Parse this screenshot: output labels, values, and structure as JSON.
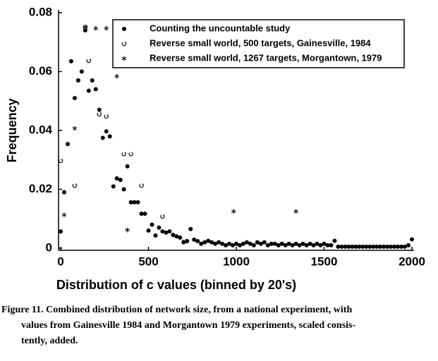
{
  "chart_data": {
    "type": "scatter",
    "xlabel": "Distribution of c values (binned by 20's)",
    "ylabel": "Frequency",
    "xlim": [
      0,
      2000
    ],
    "xticks": [
      0,
      500,
      1000,
      1500,
      2000
    ],
    "ylim": [
      0,
      0.08
    ],
    "yticks": [
      0,
      0.02,
      0.04,
      0.06,
      0.08
    ],
    "legend": "upper right",
    "series": [
      {
        "name": "Counting the uncountable study",
        "color": "#000000",
        "marker": "filled-circle",
        "x": [
          0,
          20,
          40,
          60,
          80,
          100,
          120,
          140,
          160,
          180,
          200,
          220,
          240,
          260,
          280,
          300,
          320,
          340,
          360,
          380,
          400,
          420,
          440,
          460,
          480,
          500,
          520,
          540,
          560,
          580,
          600,
          620,
          640,
          660,
          680,
          700,
          720,
          740,
          760,
          780,
          800,
          820,
          840,
          860,
          880,
          900,
          920,
          940,
          960,
          980,
          1000,
          1020,
          1040,
          1060,
          1080,
          1100,
          1120,
          1140,
          1160,
          1180,
          1200,
          1220,
          1240,
          1260,
          1280,
          1300,
          1320,
          1340,
          1360,
          1380,
          1400,
          1420,
          1440,
          1460,
          1480,
          1500,
          1520,
          1540,
          1560,
          1580,
          1600,
          1620,
          1640,
          1660,
          1680,
          1700,
          1720,
          1740,
          1760,
          1780,
          1800,
          1820,
          1840,
          1860,
          1880,
          1900,
          1920,
          1940,
          1960,
          1980,
          2000
        ],
        "values": [
          0.0057,
          0.019,
          0.0354,
          0.0635,
          0.051,
          0.057,
          0.06,
          0.074,
          0.0535,
          0.057,
          0.054,
          0.047,
          0.0375,
          0.0397,
          0.038,
          0.021,
          0.0237,
          0.0232,
          0.02,
          0.0278,
          0.0156,
          0.0156,
          0.0156,
          0.0117,
          0.0117,
          0.006,
          0.008,
          0.0043,
          0.007,
          0.0057,
          0.0053,
          0.0057,
          0.0045,
          0.004,
          0.0036,
          0.002,
          0.0024,
          0.0065,
          0.0029,
          0.0024,
          0.0015,
          0.002,
          0.0025,
          0.002,
          0.0015,
          0.002,
          0.0015,
          0.001,
          0.0015,
          0.001,
          0.0015,
          0.001,
          0.0015,
          0.002,
          0.0015,
          0.001,
          0.002,
          0.0015,
          0.002,
          0.001,
          0.0015,
          0.0015,
          0.001,
          0.0015,
          0.001,
          0.0015,
          0.001,
          0.0015,
          0.001,
          0.0015,
          0.001,
          0.0015,
          0.001,
          0.0015,
          0.001,
          0.0015,
          0.001,
          0.001,
          0.0025,
          0.0005,
          0.0005,
          0.0005,
          0.0005,
          0.0005,
          0.0005,
          0.0005,
          0.0005,
          0.0005,
          0.0005,
          0.0005,
          0.0005,
          0.0005,
          0.0005,
          0.0005,
          0.0005,
          0.0005,
          0.0005,
          0.0005,
          0.0005,
          0.001,
          0.003
        ]
      },
      {
        "name": "Reverse small world, 500 targets, Gainesville, 1984",
        "color": "#000000",
        "marker": "open-circle",
        "x": [
          0,
          80,
          140,
          160,
          220,
          260,
          360,
          400,
          460,
          580,
          705
        ],
        "values": [
          0.0297,
          0.0213,
          0.075,
          0.0637,
          0.0455,
          0.0448,
          0.032,
          0.032,
          0.0213,
          0.0108,
          0.0024
        ]
      },
      {
        "name": "Reverse small world, 1267 targets, Morgantown, 1979",
        "color": "#000000",
        "marker": "asterisk",
        "x": [
          20,
          80,
          140,
          200,
          260,
          320,
          380,
          985,
          1340
        ],
        "values": [
          0.0113,
          0.0407,
          0.0752,
          0.0747,
          0.0747,
          0.0584,
          0.0062,
          0.0125,
          0.0125
        ]
      }
    ]
  },
  "caption": [
    "Figure 11. Combined distribution of network size, from a national experiment, with",
    "values from Gainesville 1984 and Morgantown 1979 experiments, scaled consis-",
    "tently, added."
  ]
}
